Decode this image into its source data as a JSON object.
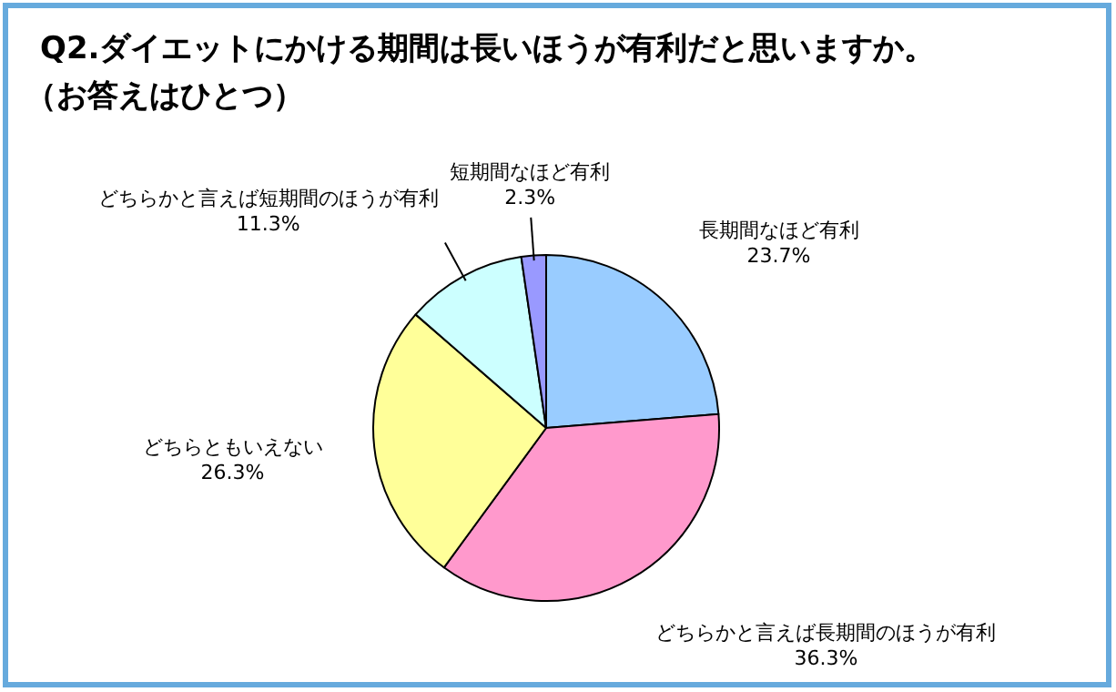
{
  "chart_data": {
    "type": "pie",
    "title": "Q2.ダイエットにかける期間は長いほうが有利だと思いますか。",
    "subtitle": "（お答えはひとつ）",
    "categories": [
      "長期間なほど有利",
      "どちらかと言えば長期間のほうが有利",
      "どちらともいえない",
      "どちらかと言えば短期間のほうが有利",
      "短期間なほど有利"
    ],
    "values": [
      23.7,
      36.3,
      26.3,
      11.3,
      2.3
    ],
    "value_labels": [
      "23.7%",
      "36.3%",
      "26.3%",
      "11.3%",
      "2.3%"
    ],
    "colors": [
      "#99ccff",
      "#ff99cc",
      "#ffff99",
      "#ccffff",
      "#9999ff"
    ]
  }
}
